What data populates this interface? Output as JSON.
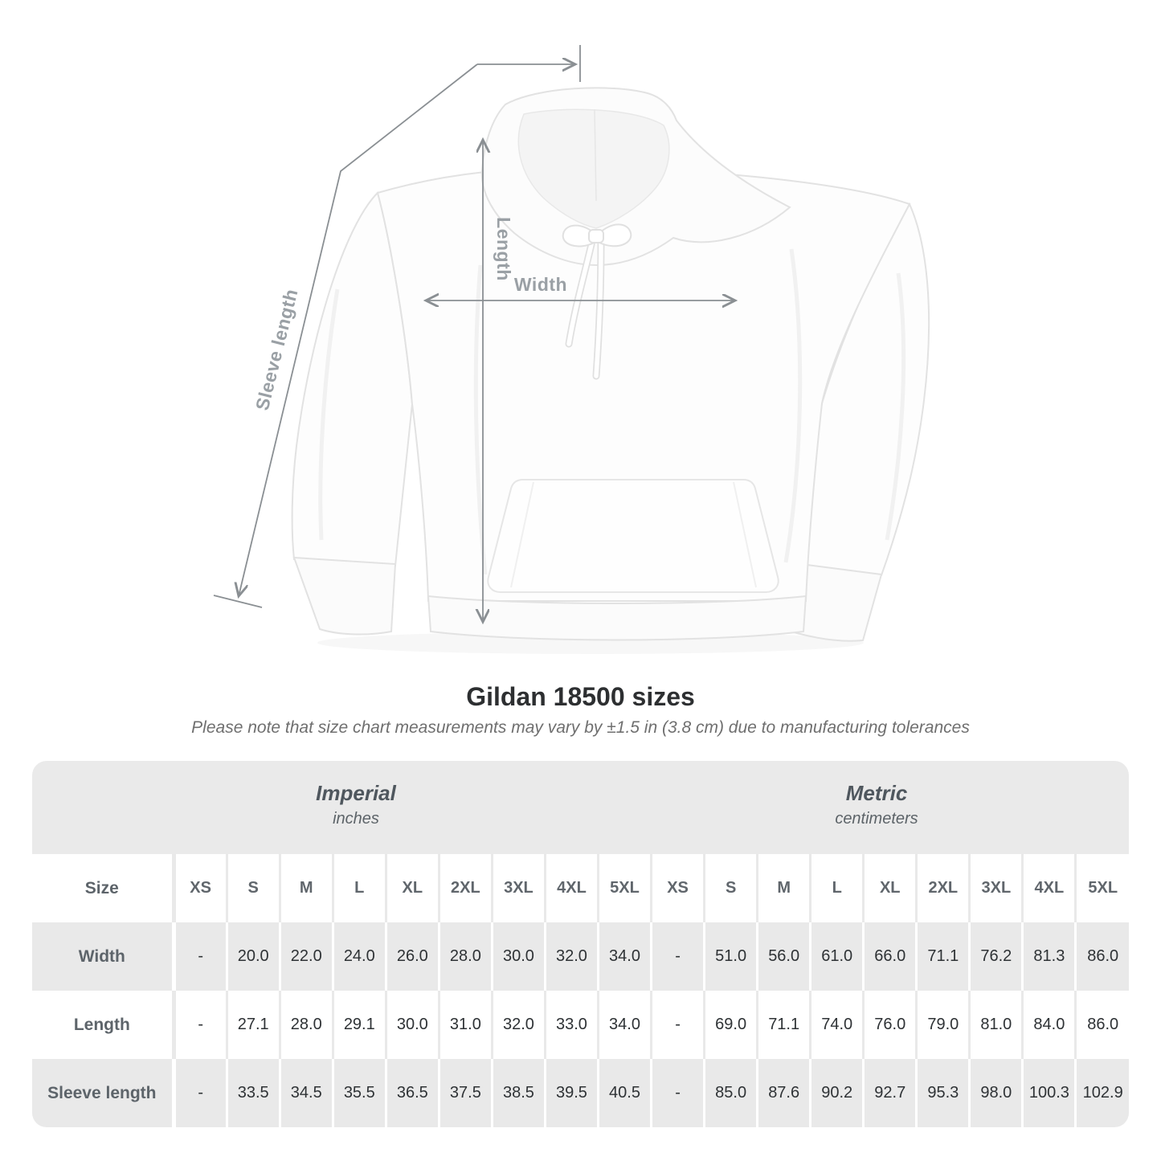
{
  "heading": {
    "title": "Gildan 18500 sizes",
    "subtitle": "Please note that size chart measurements may vary by ±1.5 in (3.8 cm) due to manufacturing tolerances"
  },
  "diagram": {
    "length_label": "Length",
    "width_label": "Width",
    "sleeve_label": "Sleeve length",
    "arrow_color": "#8a8f93",
    "label_color": "#9aa0a5"
  },
  "table": {
    "groups": [
      {
        "name": "Imperial",
        "unit": "inches"
      },
      {
        "name": "Metric",
        "unit": "centimeters"
      }
    ],
    "size_header": "Size",
    "sizes": [
      "XS",
      "S",
      "M",
      "L",
      "XL",
      "2XL",
      "3XL",
      "4XL",
      "5XL"
    ],
    "rows": [
      {
        "label": "Width",
        "imperial": [
          "-",
          "20.0",
          "22.0",
          "24.0",
          "26.0",
          "28.0",
          "30.0",
          "32.0",
          "34.0"
        ],
        "metric": [
          "-",
          "51.0",
          "56.0",
          "61.0",
          "66.0",
          "71.1",
          "76.2",
          "81.3",
          "86.0"
        ]
      },
      {
        "label": "Length",
        "imperial": [
          "-",
          "27.1",
          "28.0",
          "29.1",
          "30.0",
          "31.0",
          "32.0",
          "33.0",
          "34.0"
        ],
        "metric": [
          "-",
          "69.0",
          "71.1",
          "74.0",
          "76.0",
          "79.0",
          "81.0",
          "84.0",
          "86.0"
        ]
      },
      {
        "label": "Sleeve length",
        "imperial": [
          "-",
          "33.5",
          "34.5",
          "35.5",
          "36.5",
          "37.5",
          "38.5",
          "39.5",
          "40.5"
        ],
        "metric": [
          "-",
          "85.0",
          "87.6",
          "90.2",
          "92.7",
          "95.3",
          "98.0",
          "100.3",
          "102.9"
        ]
      }
    ],
    "colors": {
      "stripe_gray": "#e9e9e9",
      "band_gray": "#eaeaea",
      "white": "#ffffff"
    }
  }
}
